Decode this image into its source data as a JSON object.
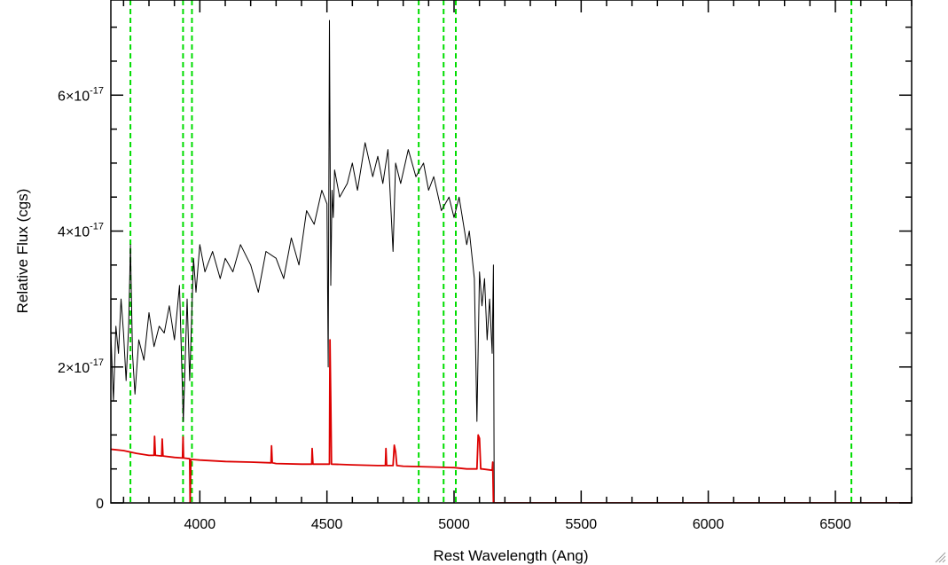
{
  "chart_data": {
    "type": "line",
    "title": "",
    "xlabel": "Rest Wavelength (Ang)",
    "ylabel": "Relative Flux (cgs)",
    "xlim": [
      3650,
      6800
    ],
    "ylim": [
      0,
      7.4e-17
    ],
    "x_ticks": [
      {
        "value": 4000,
        "label": "4000"
      },
      {
        "value": 4500,
        "label": "4500"
      },
      {
        "value": 5000,
        "label": "5000"
      },
      {
        "value": 5500,
        "label": "5500"
      },
      {
        "value": 6000,
        "label": "6000"
      },
      {
        "value": 6500,
        "label": "6500"
      }
    ],
    "y_ticks": [
      {
        "value": 0,
        "mantissa": "0",
        "exponent": ""
      },
      {
        "value": 2e-17,
        "mantissa": "2×10",
        "exponent": "-17"
      },
      {
        "value": 4e-17,
        "mantissa": "4×10",
        "exponent": "-17"
      },
      {
        "value": 6e-17,
        "mantissa": "6×10",
        "exponent": "-17"
      }
    ],
    "x_minor_step": 100,
    "y_minor_step": 5e-18,
    "grid": false,
    "legend": "none",
    "reference_lines": [
      {
        "x": 3727,
        "color": "#00dd00",
        "style": "dashed"
      },
      {
        "x": 3934,
        "color": "#00dd00",
        "style": "dashed"
      },
      {
        "x": 3969,
        "color": "#00dd00",
        "style": "dashed"
      },
      {
        "x": 4861,
        "color": "#00dd00",
        "style": "dashed"
      },
      {
        "x": 4959,
        "color": "#00dd00",
        "style": "dashed"
      },
      {
        "x": 5007,
        "color": "#00dd00",
        "style": "dashed"
      },
      {
        "x": 6563,
        "color": "#00dd00",
        "style": "dashed"
      }
    ],
    "series": [
      {
        "color": "#000000",
        "x": [
          3650,
          3660,
          3670,
          3680,
          3690,
          3700,
          3710,
          3720,
          3727,
          3735,
          3745,
          3760,
          3780,
          3800,
          3820,
          3840,
          3860,
          3880,
          3900,
          3920,
          3935,
          3950,
          3960,
          3975,
          3985,
          4000,
          4020,
          4050,
          4080,
          4100,
          4130,
          4160,
          4200,
          4230,
          4260,
          4300,
          4330,
          4360,
          4390,
          4420,
          4450,
          4480,
          4500,
          4505,
          4510,
          4515,
          4520,
          4525,
          4530,
          4550,
          4580,
          4600,
          4620,
          4650,
          4680,
          4700,
          4720,
          4740,
          4760,
          4770,
          4790,
          4820,
          4850,
          4880,
          4900,
          4920,
          4950,
          4980,
          5000,
          5020,
          5050,
          5060,
          5080,
          5090,
          5100,
          5110,
          5120,
          5130,
          5140,
          5150,
          5155,
          5158
        ],
        "y": [
          2.5e-17,
          1.5e-17,
          2.6e-17,
          2.2e-17,
          3e-17,
          2.5e-17,
          1.8e-17,
          2.6e-17,
          3.8e-17,
          2.2e-17,
          1.6e-17,
          2.4e-17,
          2.1e-17,
          2.8e-17,
          2.3e-17,
          2.6e-17,
          2.5e-17,
          2.9e-17,
          2.4e-17,
          3.2e-17,
          1.2e-17,
          3e-17,
          1.8e-17,
          3.6e-17,
          3.1e-17,
          3.8e-17,
          3.4e-17,
          3.7e-17,
          3.3e-17,
          3.6e-17,
          3.4e-17,
          3.8e-17,
          3.5e-17,
          3.1e-17,
          3.7e-17,
          3.6e-17,
          3.3e-17,
          3.9e-17,
          3.5e-17,
          4.3e-17,
          4.1e-17,
          4.6e-17,
          4.4e-17,
          2e-17,
          7.1e-17,
          3.2e-17,
          4.6e-17,
          4.2e-17,
          4.9e-17,
          4.5e-17,
          4.7e-17,
          5e-17,
          4.6e-17,
          5.3e-17,
          4.8e-17,
          5.1e-17,
          4.7e-17,
          5.2e-17,
          3.7e-17,
          5e-17,
          4.7e-17,
          5.2e-17,
          4.8e-17,
          5e-17,
          4.6e-17,
          4.8e-17,
          4.3e-17,
          4.5e-17,
          4.2e-17,
          4.5e-17,
          3.8e-17,
          4e-17,
          3.3e-17,
          1.2e-17,
          3.4e-17,
          2.9e-17,
          3.3e-17,
          2.4e-17,
          3e-17,
          2.2e-17,
          3.5e-17,
          0
        ]
      },
      {
        "color": "#dd0000",
        "x": [
          3650,
          3700,
          3750,
          3800,
          3820,
          3822,
          3825,
          3850,
          3852,
          3855,
          3900,
          3932,
          3934,
          3936,
          3960,
          3962,
          3965,
          3970,
          4000,
          4100,
          4200,
          4280,
          4282,
          4285,
          4300,
          4400,
          4440,
          4442,
          4445,
          4500,
          4510,
          4512,
          4515,
          4518,
          4520,
          4600,
          4700,
          4730,
          4732,
          4735,
          4760,
          4765,
          4770,
          4775,
          4800,
          4900,
          5000,
          5050,
          5090,
          5095,
          5100,
          5105,
          5110,
          5150,
          5152,
          5155,
          5160,
          6000,
          6800
        ],
        "y": [
          7.9e-18,
          7.7e-18,
          7.3e-18,
          7e-18,
          7e-18,
          9.8e-18,
          7e-18,
          6.9e-18,
          9.4e-18,
          6.9e-18,
          6.7e-18,
          6.6e-18,
          9.7e-18,
          6.6e-18,
          6.5e-18,
          -1e-18,
          6.4e-18,
          6.4e-18,
          6.3e-18,
          6.1e-18,
          6e-18,
          5.9e-18,
          8.4e-18,
          5.9e-18,
          5.8e-18,
          5.7e-18,
          5.7e-18,
          8e-18,
          5.7e-18,
          5.7e-18,
          5.7e-18,
          2.4e-17,
          1.5e-17,
          5.7e-18,
          5.7e-18,
          5.6e-18,
          5.5e-18,
          5.5e-18,
          8e-18,
          5.5e-18,
          5.5e-18,
          8.5e-18,
          7.5e-18,
          5.5e-18,
          5.4e-18,
          5.3e-18,
          5.2e-18,
          5e-18,
          5e-18,
          1e-17,
          9.5e-18,
          5e-18,
          5e-18,
          4.8e-18,
          6e-18,
          0,
          -1e-18,
          -1e-18,
          -1e-18
        ]
      }
    ]
  }
}
